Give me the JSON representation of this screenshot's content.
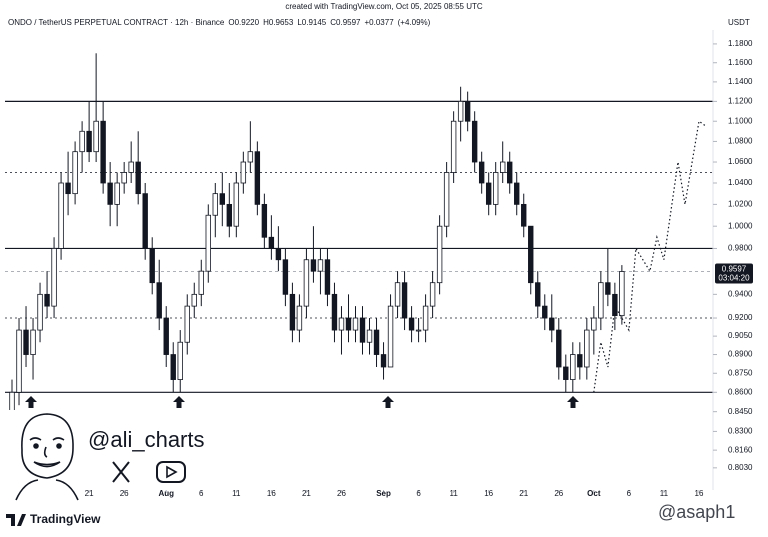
{
  "header": {
    "created": "created with TradingView.com, Oct 05, 2025 08:55 UTC"
  },
  "chart_data": {
    "type": "candlestick",
    "title": "ONDO / TetherUS PERPETUAL CONTRACT · 12h · Binance",
    "summary": [
      {
        "value": 0.922,
        "label": "O0.9220"
      },
      {
        "value": 0.9653,
        "label": "H0.9653"
      },
      {
        "value": 0.9145,
        "label": "L0.9145"
      },
      {
        "value": 0.9597,
        "label": "C0.9597"
      },
      {
        "value": 0.0377,
        "label": "+0.0377"
      },
      {
        "value": 4.09,
        "label": "(+4.09%)"
      }
    ],
    "currency": "USDT",
    "last_price": {
      "value": 0.9597,
      "label": "0.9597"
    },
    "countdown": "03:04:20",
    "x": [
      "2025-07-09",
      "2025-07-10",
      "2025-07-11",
      "2025-07-12",
      "2025-07-13",
      "2025-07-14",
      "2025-07-15",
      "2025-07-16",
      "2025-07-17",
      "2025-07-18",
      "2025-07-19",
      "2025-07-20",
      "2025-07-21",
      "2025-07-22",
      "2025-07-23",
      "2025-07-24",
      "2025-07-25",
      "2025-07-26",
      "2025-07-27",
      "2025-07-28",
      "2025-07-29",
      "2025-07-30",
      "2025-07-31",
      "2025-08-01",
      "2025-08-02",
      "2025-08-03",
      "2025-08-04",
      "2025-08-05",
      "2025-08-06",
      "2025-08-07",
      "2025-08-08",
      "2025-08-09",
      "2025-08-10",
      "2025-08-11",
      "2025-08-12",
      "2025-08-13",
      "2025-08-14",
      "2025-08-15",
      "2025-08-16",
      "2025-08-17",
      "2025-08-18",
      "2025-08-19",
      "2025-08-20",
      "2025-08-21",
      "2025-08-22",
      "2025-08-23",
      "2025-08-24",
      "2025-08-25",
      "2025-08-26",
      "2025-08-27",
      "2025-08-28",
      "2025-08-29",
      "2025-08-30",
      "2025-08-31",
      "2025-09-01",
      "2025-09-02",
      "2025-09-03",
      "2025-09-04",
      "2025-09-05",
      "2025-09-06",
      "2025-09-07",
      "2025-09-08",
      "2025-09-09",
      "2025-09-10",
      "2025-09-11",
      "2025-09-12",
      "2025-09-13",
      "2025-09-14",
      "2025-09-15",
      "2025-09-16",
      "2025-09-17",
      "2025-09-18",
      "2025-09-19",
      "2025-09-20",
      "2025-09-21",
      "2025-09-22",
      "2025-09-23",
      "2025-09-24",
      "2025-09-25",
      "2025-09-26",
      "2025-09-27",
      "2025-09-28",
      "2025-09-29",
      "2025-09-30",
      "2025-10-01",
      "2025-10-02",
      "2025-10-03",
      "2025-10-04",
      "2025-10-05"
    ],
    "open": [
      0.82,
      0.83,
      0.86,
      0.91,
      0.89,
      0.91,
      0.94,
      0.93,
      0.98,
      1.04,
      1.03,
      1.07,
      1.09,
      1.07,
      1.1,
      1.04,
      1.02,
      1.04,
      1.05,
      1.06,
      1.03,
      0.98,
      0.95,
      0.92,
      0.89,
      0.87,
      0.9,
      0.93,
      0.94,
      0.96,
      1.01,
      1.03,
      1.02,
      1.0,
      1.04,
      1.06,
      1.07,
      1.02,
      0.99,
      0.98,
      0.97,
      0.94,
      0.91,
      0.93,
      0.97,
      0.96,
      0.97,
      0.94,
      0.91,
      0.92,
      0.91,
      0.92,
      0.9,
      0.91,
      0.89,
      0.88,
      0.93,
      0.95,
      0.92,
      0.91,
      0.91,
      0.93,
      0.95,
      1.0,
      1.05,
      1.1,
      1.12,
      1.1,
      1.06,
      1.04,
      1.02,
      1.05,
      1.06,
      1.04,
      1.02,
      1.0,
      0.95,
      0.93,
      0.92,
      0.91,
      0.88,
      0.87,
      0.89,
      0.88,
      0.91,
      0.92,
      0.95,
      0.94,
      0.922
    ],
    "high": [
      0.84,
      0.87,
      0.92,
      0.93,
      0.92,
      0.95,
      0.96,
      0.99,
      1.05,
      1.07,
      1.08,
      1.1,
      1.12,
      1.17,
      1.12,
      1.06,
      1.05,
      1.06,
      1.08,
      1.09,
      1.04,
      0.99,
      0.97,
      0.93,
      0.9,
      0.91,
      0.94,
      0.95,
      0.97,
      1.02,
      1.04,
      1.05,
      1.04,
      1.05,
      1.07,
      1.1,
      1.08,
      1.03,
      1.01,
      1.0,
      0.98,
      0.95,
      0.94,
      0.98,
      1.0,
      0.98,
      0.98,
      0.95,
      0.93,
      0.94,
      0.93,
      0.93,
      0.92,
      0.92,
      0.9,
      0.94,
      0.96,
      0.96,
      0.93,
      0.92,
      0.94,
      0.96,
      1.01,
      1.06,
      1.11,
      1.135,
      1.13,
      1.11,
      1.07,
      1.05,
      1.06,
      1.08,
      1.07,
      1.05,
      1.03,
      1.0,
      0.96,
      0.94,
      0.94,
      0.92,
      0.89,
      0.9,
      0.9,
      0.92,
      0.93,
      0.96,
      0.98,
      0.95,
      0.9653
    ],
    "low": [
      0.8,
      0.82,
      0.85,
      0.88,
      0.87,
      0.9,
      0.92,
      0.92,
      0.97,
      1.01,
      1.02,
      1.05,
      1.06,
      1.06,
      1.03,
      1.0,
      1.0,
      1.03,
      1.04,
      1.02,
      0.97,
      0.94,
      0.91,
      0.88,
      0.86,
      0.86,
      0.89,
      0.92,
      0.93,
      0.95,
      0.99,
      1.0,
      0.99,
      0.99,
      1.03,
      1.05,
      1.01,
      0.98,
      0.97,
      0.96,
      0.93,
      0.9,
      0.9,
      0.92,
      0.95,
      0.94,
      0.93,
      0.9,
      0.89,
      0.9,
      0.9,
      0.89,
      0.89,
      0.88,
      0.87,
      0.88,
      0.92,
      0.91,
      0.9,
      0.9,
      0.9,
      0.92,
      0.94,
      0.99,
      1.04,
      1.08,
      1.09,
      1.05,
      1.03,
      1.01,
      1.01,
      1.04,
      1.03,
      1.01,
      0.99,
      0.94,
      0.92,
      0.91,
      0.9,
      0.87,
      0.86,
      0.86,
      0.87,
      0.87,
      0.89,
      0.91,
      0.93,
      0.91,
      0.9145
    ],
    "close": [
      0.83,
      0.86,
      0.91,
      0.89,
      0.91,
      0.94,
      0.93,
      0.98,
      1.04,
      1.03,
      1.07,
      1.09,
      1.07,
      1.1,
      1.04,
      1.02,
      1.04,
      1.05,
      1.06,
      1.03,
      0.98,
      0.95,
      0.92,
      0.89,
      0.87,
      0.9,
      0.93,
      0.94,
      0.96,
      1.01,
      1.03,
      1.02,
      1.0,
      1.04,
      1.06,
      1.07,
      1.02,
      0.99,
      0.98,
      0.97,
      0.94,
      0.91,
      0.93,
      0.97,
      0.96,
      0.97,
      0.94,
      0.91,
      0.92,
      0.91,
      0.92,
      0.9,
      0.91,
      0.89,
      0.88,
      0.93,
      0.95,
      0.92,
      0.91,
      0.91,
      0.93,
      0.95,
      1.0,
      1.05,
      1.1,
      1.12,
      1.1,
      1.06,
      1.04,
      1.02,
      1.05,
      1.06,
      1.04,
      1.02,
      1.0,
      0.95,
      0.93,
      0.92,
      0.91,
      0.88,
      0.87,
      0.89,
      0.88,
      0.91,
      0.92,
      0.95,
      0.94,
      0.922,
      0.9597
    ],
    "up_color": "#ffffff",
    "down_color": "#131722",
    "xlim": [
      "2025-07-09",
      "2025-10-18"
    ],
    "xticks": [
      {
        "value": "2025-07-21",
        "label": "21"
      },
      {
        "value": "2025-07-26",
        "label": "26"
      },
      {
        "value": "2025-08-01",
        "label": "Aug"
      },
      {
        "value": "2025-08-06",
        "label": "6"
      },
      {
        "value": "2025-08-11",
        "label": "11"
      },
      {
        "value": "2025-08-16",
        "label": "16"
      },
      {
        "value": "2025-08-21",
        "label": "21"
      },
      {
        "value": "2025-08-26",
        "label": "26"
      },
      {
        "value": "2025-09-01",
        "label": "Sep"
      },
      {
        "value": "2025-09-06",
        "label": "6"
      },
      {
        "value": "2025-09-11",
        "label": "11"
      },
      {
        "value": "2025-09-16",
        "label": "16"
      },
      {
        "value": "2025-09-21",
        "label": "21"
      },
      {
        "value": "2025-09-26",
        "label": "26"
      },
      {
        "value": "2025-10-01",
        "label": "Oct"
      },
      {
        "value": "2025-10-06",
        "label": "6"
      },
      {
        "value": "2025-10-11",
        "label": "11"
      },
      {
        "value": "2025-10-16",
        "label": "16"
      }
    ],
    "ylim": [
      0.787,
      1.195
    ],
    "log_scale": true,
    "yticks": [
      {
        "value": 1.18,
        "label": "1.1800"
      },
      {
        "value": 1.16,
        "label": "1.1600"
      },
      {
        "value": 1.14,
        "label": "1.1400"
      },
      {
        "value": 1.12,
        "label": "1.1200"
      },
      {
        "value": 1.1,
        "label": "1.1000"
      },
      {
        "value": 1.08,
        "label": "1.0800"
      },
      {
        "value": 1.06,
        "label": "1.0600"
      },
      {
        "value": 1.04,
        "label": "1.0400"
      },
      {
        "value": 1.02,
        "label": "1.0200"
      },
      {
        "value": 1.0,
        "label": "1.0000"
      },
      {
        "value": 0.98,
        "label": "0.9800"
      },
      {
        "value": 0.94,
        "label": "0.9400"
      },
      {
        "value": 0.92,
        "label": "0.9200"
      },
      {
        "value": 0.905,
        "label": "0.9050"
      },
      {
        "value": 0.89,
        "label": "0.8900"
      },
      {
        "value": 0.875,
        "label": "0.8750"
      },
      {
        "value": 0.86,
        "label": "0.8600"
      },
      {
        "value": 0.845,
        "label": "0.8450"
      },
      {
        "value": 0.83,
        "label": "0.8300"
      },
      {
        "value": 0.816,
        "label": "0.8160"
      },
      {
        "value": 0.803,
        "label": "0.8030"
      }
    ],
    "levels": [
      {
        "value": 1.12,
        "style": "solid"
      },
      {
        "value": 1.05,
        "style": "dotted"
      },
      {
        "value": 0.98,
        "style": "solid"
      },
      {
        "value": 0.92,
        "style": "dotted"
      },
      {
        "value": 0.86,
        "style": "solid"
      }
    ],
    "projection": {
      "x": [
        "2025-10-01",
        "2025-10-02",
        "2025-10-03",
        "2025-10-04",
        "2025-10-06",
        "2025-10-07",
        "2025-10-09",
        "2025-10-10",
        "2025-10-11",
        "2025-10-13",
        "2025-10-14",
        "2025-10-16",
        "2025-10-17"
      ],
      "y": [
        0.86,
        0.9,
        0.88,
        0.93,
        0.91,
        0.98,
        0.96,
        0.99,
        0.97,
        1.06,
        1.02,
        1.1,
        1.095
      ]
    }
  },
  "branding": {
    "handle": "@ali_charts",
    "logo": "TradingView",
    "watermark": "@asaph1"
  }
}
